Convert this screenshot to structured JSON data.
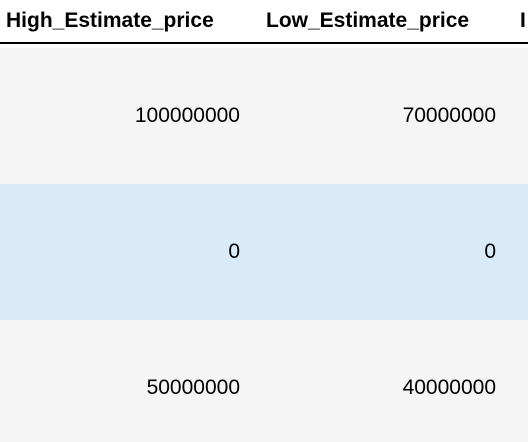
{
  "table": {
    "columns": [
      "High_Estimate_price",
      "Low_Estimate_price",
      "I"
    ],
    "rows": [
      {
        "high": "100000000",
        "low": "70000000"
      },
      {
        "high": "0",
        "low": "0"
      },
      {
        "high": "50000000",
        "low": "40000000"
      }
    ]
  },
  "colors": {
    "row_even_bg": "#f5f5f5",
    "row_hover_bg": "#d9ebf9",
    "header_border": "#000000"
  }
}
